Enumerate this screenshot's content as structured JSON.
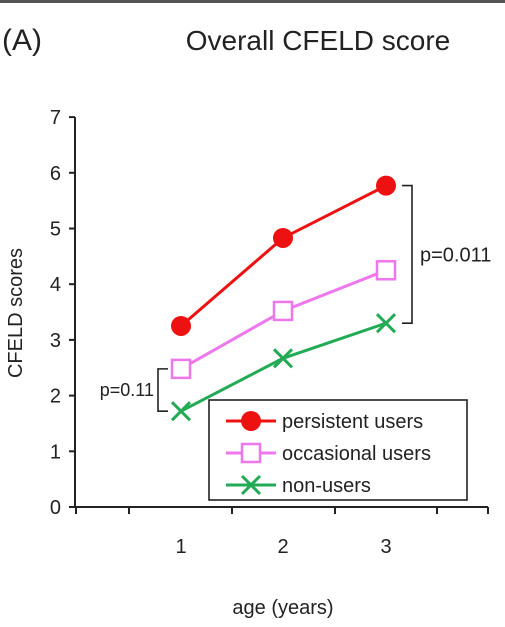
{
  "panel_label": "(A)",
  "colors": {
    "persistent": "#ee1111",
    "occasional": "#ee77ee",
    "non_users": "#22aa55",
    "axis": "#222222"
  },
  "chart_data": {
    "type": "line",
    "title": "Overall CFELD score",
    "xlabel": "age (years)",
    "ylabel": "CFELD scores",
    "x": [
      1,
      2,
      3
    ],
    "xticks": [
      "1",
      "2",
      "3"
    ],
    "yticks": [
      "0",
      "1",
      "2",
      "3",
      "4",
      "5",
      "6",
      "7"
    ],
    "ylim": [
      0,
      7
    ],
    "grid": false,
    "legend": {
      "position": "bottom-right"
    },
    "series": [
      {
        "name": "persistent users",
        "values": [
          3.25,
          4.83,
          5.77
        ],
        "color": "#ee1111",
        "marker": "filled-circle"
      },
      {
        "name": "occasional users",
        "values": [
          2.48,
          3.52,
          4.25
        ],
        "color": "#ee77ee",
        "marker": "open-square"
      },
      {
        "name": "non-users",
        "values": [
          1.72,
          2.67,
          3.3
        ],
        "color": "#22aa55",
        "marker": "x"
      }
    ],
    "annotations": [
      {
        "text": "p=0.011",
        "x": 3,
        "from": 3.3,
        "to": 5.77,
        "side": "right"
      },
      {
        "text": "p=0.11",
        "x": 1,
        "from": 1.72,
        "to": 2.48,
        "side": "left"
      }
    ]
  }
}
